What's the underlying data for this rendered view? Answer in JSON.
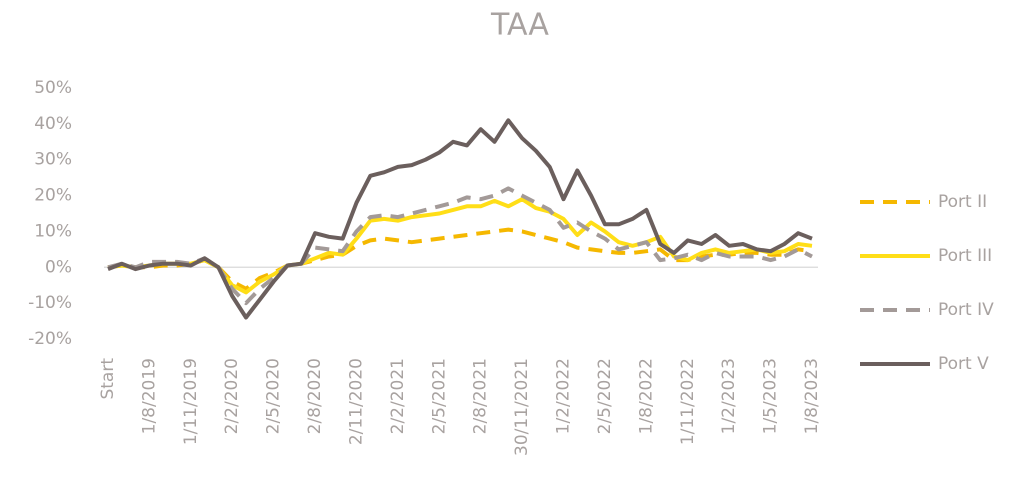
{
  "chart_data": {
    "type": "line",
    "title": "TAA",
    "categories": [
      "Start",
      null,
      null,
      "1/8/2019",
      null,
      null,
      "1/11/2019",
      null,
      null,
      "2/2/2020",
      null,
      null,
      "2/5/2020",
      null,
      null,
      "2/8/2020",
      null,
      null,
      "2/11/2020",
      null,
      null,
      "2/2/2021",
      null,
      null,
      "2/5/2021",
      null,
      null,
      "2/8/2021",
      null,
      null,
      "30/11/2021",
      null,
      null,
      "1/2/2022",
      null,
      null,
      "2/5/2022",
      null,
      null,
      "1/8/2022",
      null,
      null,
      "1/11/2022",
      null,
      null,
      "1/2/2023",
      null,
      null,
      "1/5/2023",
      null,
      null,
      "1/8/2023"
    ],
    "series": [
      {
        "name": "Port II",
        "color": "#f5b800",
        "dashed": true,
        "values": [
          0,
          0.5,
          0,
          0,
          0.5,
          0.5,
          1,
          2,
          0,
          -4,
          -6,
          -3,
          -1.5,
          0.5,
          1,
          2,
          3,
          3.5,
          6,
          7.5,
          8,
          7.5,
          7,
          7.5,
          8,
          8.5,
          9,
          9.5,
          10,
          10.5,
          10,
          9,
          8,
          7,
          5.5,
          5,
          4.5,
          4,
          4,
          4.5,
          5,
          2,
          2,
          3,
          3.5,
          3.5,
          4,
          4,
          3.5,
          3.5,
          5,
          4.5
        ]
      },
      {
        "name": "Port III",
        "color": "#ffde17",
        "dashed": false,
        "values": [
          0,
          0.5,
          0,
          0.5,
          1,
          1,
          1,
          2,
          0,
          -5,
          -7,
          -4,
          -2,
          0.5,
          1,
          2.5,
          4,
          3.5,
          8,
          13,
          13.5,
          13,
          14,
          14.5,
          15,
          16,
          17,
          17,
          18.5,
          17,
          19,
          16.5,
          15.5,
          13.5,
          9,
          12.5,
          10,
          7,
          6,
          7,
          8.5,
          3,
          2,
          4,
          5,
          4,
          4.5,
          5,
          4,
          4.5,
          6.5,
          6
        ]
      },
      {
        "name": "Port IV",
        "color": "#a39a98",
        "dashed": true,
        "values": [
          0,
          1,
          0,
          1.5,
          1.5,
          1.5,
          1,
          2.5,
          0,
          -6,
          -10,
          -6,
          -3,
          0.5,
          1,
          5.5,
          5,
          4.5,
          10,
          14,
          14.5,
          14,
          15,
          16,
          17,
          18,
          19.5,
          19,
          20,
          22,
          20,
          18,
          16,
          11,
          12.5,
          10,
          8,
          5,
          6,
          7,
          2,
          2.5,
          3.5,
          2,
          4,
          3,
          3,
          3,
          2,
          3,
          5,
          3
        ]
      },
      {
        "name": "Port V",
        "color": "#6b5f5d",
        "dashed": false,
        "values": [
          -0.5,
          1,
          -0.5,
          0.5,
          1,
          1,
          0.5,
          2.5,
          0,
          -8,
          -14,
          -9,
          -4,
          0.5,
          1,
          9.5,
          8.5,
          8,
          18,
          25.5,
          26.5,
          28,
          28.5,
          30,
          32,
          35,
          34,
          38.5,
          35,
          41,
          36,
          32.5,
          28,
          19,
          27,
          20,
          12,
          12,
          13.5,
          16,
          6.5,
          4,
          7.5,
          6.5,
          9,
          6,
          6.5,
          5,
          4.5,
          6.5,
          9.5,
          8
        ]
      }
    ],
    "ylim": [
      -20,
      50
    ],
    "yticks": [
      {
        "value": -20,
        "label": "-20%"
      },
      {
        "value": -10,
        "label": "-10%"
      },
      {
        "value": 0,
        "label": "0%"
      },
      {
        "value": 10,
        "label": "10%"
      },
      {
        "value": 20,
        "label": "20%"
      },
      {
        "value": 30,
        "label": "30%"
      },
      {
        "value": 40,
        "label": "40%"
      },
      {
        "value": 50,
        "label": "50%"
      }
    ],
    "grid": false,
    "legend": "right"
  }
}
